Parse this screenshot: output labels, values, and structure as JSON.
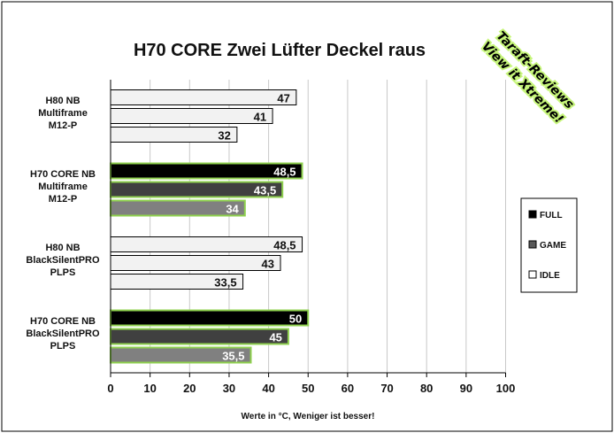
{
  "chart_data": {
    "type": "bar",
    "orientation": "horizontal",
    "title": "H70 CORE Zwei Lüfter Deckel raus",
    "xlabel": "Werte in °C, Weniger ist besser!",
    "xlim": [
      0,
      100
    ],
    "xticks": [
      "0",
      "10",
      "20",
      "30",
      "40",
      "50",
      "60",
      "70",
      "80",
      "90",
      "100"
    ],
    "grid": true,
    "legend_position": "right",
    "categories": [
      [
        "H80 NB",
        "Multiframe",
        "M12-P"
      ],
      [
        "H70 CORE  NB",
        "Multiframe",
        "M12-P"
      ],
      [
        "H80 NB",
        "BlackSilentPRO",
        "PLPS"
      ],
      [
        "H70 CORE  NB",
        "BlackSilentPRO",
        "PLPS"
      ]
    ],
    "series": [
      {
        "name": "FULL",
        "values": [
          47,
          48.5,
          48.5,
          50
        ],
        "labels": [
          "47",
          "48,5",
          "48,5",
          "50"
        ]
      },
      {
        "name": "GAME",
        "values": [
          41,
          43.5,
          43,
          45
        ],
        "labels": [
          "41",
          "43,5",
          "43",
          "45"
        ]
      },
      {
        "name": "IDLE",
        "values": [
          32,
          34,
          33.5,
          35.5
        ],
        "labels": [
          "32",
          "34",
          "33,5",
          "35,5"
        ]
      }
    ]
  },
  "watermark": {
    "line1": "Taraft-Reviews",
    "line2": "View it Xtreme!"
  },
  "colors": {
    "plain_fill": "#f2f2f2",
    "plain_border": "#000000",
    "highlight_full": "#000000",
    "highlight_game": "#404040",
    "highlight_idle": "#808080",
    "highlight_border": "#8fd14f",
    "legend_full": "#000000",
    "legend_game": "#595959",
    "legend_idle": "#ffffff"
  }
}
